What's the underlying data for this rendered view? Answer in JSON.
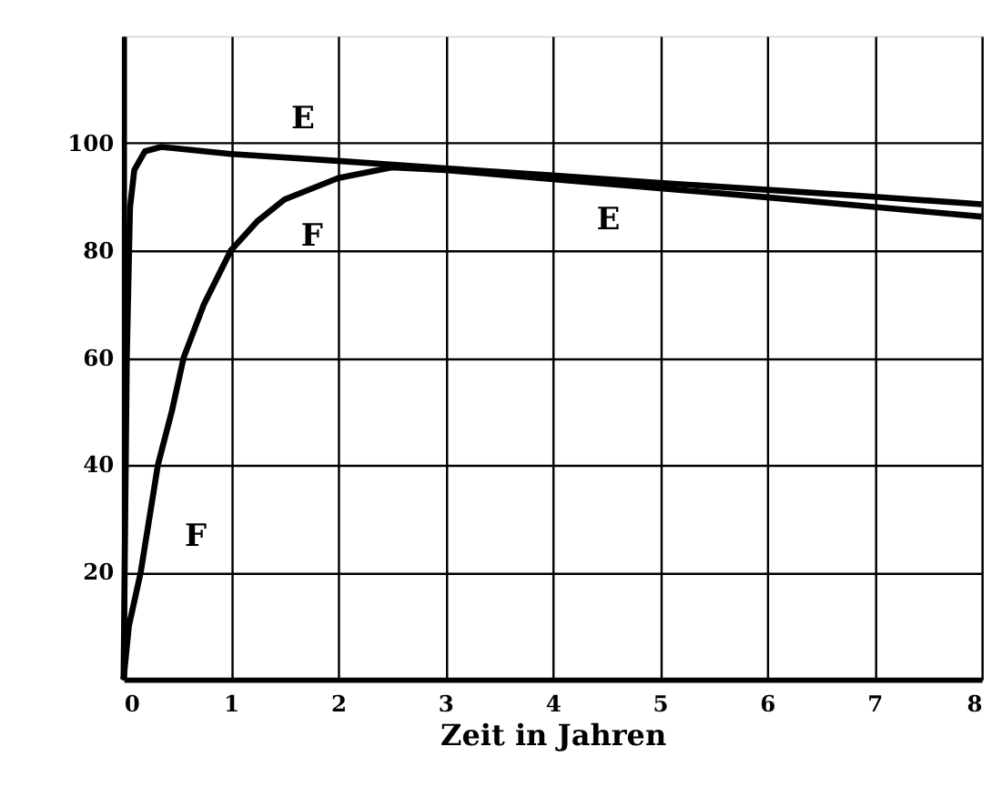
{
  "chart_data": {
    "type": "line",
    "xlabel": "Zeit in Jahren",
    "xlim": [
      0,
      8
    ],
    "xticks": [
      0,
      1,
      2,
      3,
      4,
      5,
      6,
      7,
      8
    ],
    "ylim": [
      0,
      120
    ],
    "yticks": [
      20,
      40,
      60,
      80,
      100
    ],
    "grid": true,
    "marker": "none",
    "line_style": "solid",
    "series": [
      {
        "name": "E",
        "color": "#000000",
        "x": [
          0,
          0.03,
          0.06,
          0.1,
          0.2,
          0.35,
          0.5,
          1,
          2,
          3,
          4,
          5,
          6,
          7,
          8
        ],
        "values": [
          0,
          60,
          88,
          95,
          98.5,
          99.3,
          99,
          98,
          96.7,
          95.3,
          94,
          92.6,
          91.3,
          90,
          88.6
        ]
      },
      {
        "name": "F",
        "color": "#000000",
        "x": [
          0,
          0.05,
          0.16,
          0.32,
          0.45,
          0.56,
          0.75,
          1,
          1.25,
          1.5,
          2,
          2.5,
          3,
          4,
          5,
          6,
          7,
          8
        ],
        "values": [
          0,
          10,
          20,
          40,
          50,
          60,
          70,
          80,
          85.5,
          89.5,
          93.5,
          95.5,
          95,
          93.3,
          91.6,
          89.9,
          88.1,
          86.3
        ]
      }
    ]
  }
}
